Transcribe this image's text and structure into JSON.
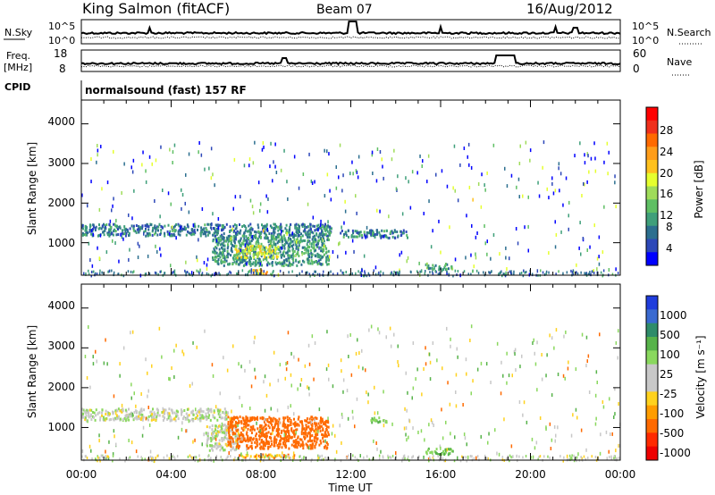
{
  "header": {
    "station": "King Salmon (fitACF)",
    "beam": "Beam 07",
    "date": "16/Aug/2012",
    "cpid_label": "CPID",
    "cpid_text": "normalsound (fast) 157 RF"
  },
  "nsky_panel": {
    "left_label": "N.Sky",
    "right_label": "N.Search",
    "right_ticks": [
      "10^5",
      "10^0"
    ],
    "left_ticks": [
      "10^5",
      "10^0"
    ]
  },
  "freq_panel": {
    "left_label_line1": "Freq.",
    "left_label_line2": "[MHz]",
    "left_ticks": [
      "18",
      "8"
    ],
    "right_label": "Nave",
    "right_ticks": [
      "60",
      "0"
    ]
  },
  "power_colorbar": {
    "label": "Power [dB]",
    "ticks": [
      "28",
      "24",
      "20",
      "16",
      "12",
      "8",
      "4"
    ],
    "colors": [
      "#ff0000",
      "#f0301c",
      "#ff6a00",
      "#ff9d1a",
      "#ffc11e",
      "#e6ff2e",
      "#9fdc5a",
      "#5fbf64",
      "#3f9f7a",
      "#2c6f8f",
      "#2d48b8",
      "#0000ff"
    ]
  },
  "velocity_colorbar": {
    "label": "Velocity [m s⁻¹]",
    "ticks": [
      "1000",
      "500",
      "100",
      "25",
      "-25",
      "-100",
      "-500",
      "-1000"
    ],
    "colors": [
      "#1f3ddc",
      "#3a6ad0",
      "#2f8c6a",
      "#57b34a",
      "#8ad85e",
      "#c8c8c8",
      "#c8c8c8",
      "#ffd21e",
      "#ff9d00",
      "#ff6a00",
      "#ff2a00",
      "#ee0000"
    ]
  },
  "chart_data": [
    {
      "type": "heatmap",
      "panel": "power",
      "title": "",
      "ylabel": "Slant Range [km]",
      "yticks": [
        "4000",
        "3000",
        "2000",
        "1000"
      ],
      "ylim": [
        180,
        4600
      ],
      "xlim": [
        0,
        24
      ],
      "xticks": [
        "00:00",
        "04:00",
        "08:00",
        "12:00",
        "16:00",
        "20:00",
        "00:00"
      ],
      "colorbar_label": "Power [dB]",
      "regions": [
        {
          "t0": 0.0,
          "t1": 11.2,
          "r0": 1200,
          "r1": 1500,
          "value": 6
        },
        {
          "t0": 5.8,
          "t1": 11.0,
          "r0": 450,
          "r1": 1200,
          "value": 8
        },
        {
          "t0": 6.8,
          "t1": 8.8,
          "r0": 650,
          "r1": 950,
          "value": 16
        },
        {
          "t0": 7.3,
          "t1": 8.3,
          "r0": 250,
          "r1": 350,
          "value": 20
        },
        {
          "t0": 11.5,
          "t1": 14.5,
          "r0": 1150,
          "r1": 1350,
          "value": 6
        },
        {
          "t0": 15.3,
          "t1": 16.5,
          "r0": 350,
          "r1": 500,
          "value": 10
        }
      ]
    },
    {
      "type": "heatmap",
      "panel": "velocity",
      "title": "",
      "xlabel": "Time UT",
      "ylabel": "Slant Range [km]",
      "yticks": [
        "4000",
        "3000",
        "2000",
        "1000"
      ],
      "ylim": [
        180,
        4600
      ],
      "xlim": [
        0,
        24
      ],
      "xticks": [
        "00:00",
        "04:00",
        "08:00",
        "12:00",
        "16:00",
        "20:00",
        "00:00"
      ],
      "colorbar_label": "Velocity [m s⁻¹]",
      "regions": [
        {
          "t0": 0.0,
          "t1": 6.5,
          "r0": 1200,
          "r1": 1500,
          "value": 0
        },
        {
          "t0": 5.5,
          "t1": 7.0,
          "r0": 450,
          "r1": 1100,
          "value": 0
        },
        {
          "t0": 6.5,
          "t1": 11.0,
          "r0": 500,
          "r1": 1300,
          "value": -100
        },
        {
          "t0": 7.0,
          "t1": 9.5,
          "r0": 250,
          "r1": 350,
          "value": -60
        },
        {
          "t0": 12.8,
          "t1": 13.6,
          "r0": 1150,
          "r1": 1300,
          "value": 40
        },
        {
          "t0": 15.3,
          "t1": 16.6,
          "r0": 350,
          "r1": 500,
          "value": 60
        }
      ]
    }
  ]
}
